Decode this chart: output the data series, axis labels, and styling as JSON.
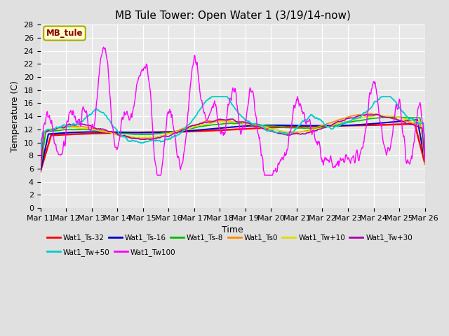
{
  "title": "MB Tule Tower: Open Water 1 (3/19/14-now)",
  "xlabel": "Time",
  "ylabel": "Temperature (C)",
  "ylim": [
    0,
    28
  ],
  "yticks": [
    0,
    2,
    4,
    6,
    8,
    10,
    12,
    14,
    16,
    18,
    20,
    22,
    24,
    26,
    28
  ],
  "background_color": "#e0e0e0",
  "plot_bg_color": "#e8e8e8",
  "legend_box_label": "MB_tule",
  "legend_box_color": "#ffffcc",
  "legend_box_edge": "#aaaa00",
  "series": [
    {
      "label": "Wat1_Ts-32",
      "color": "#ff0000"
    },
    {
      "label": "Wat1_Ts-16",
      "color": "#0000cc"
    },
    {
      "label": "Wat1_Ts-8",
      "color": "#00bb00"
    },
    {
      "label": "Wat1_Ts0",
      "color": "#ff8800"
    },
    {
      "label": "Wat1_Tw+10",
      "color": "#dddd00"
    },
    {
      "label": "Wat1_Tw+30",
      "color": "#aa00aa"
    },
    {
      "label": "Wat1_Tw+50",
      "color": "#00cccc"
    },
    {
      "label": "Wat1_Tw100",
      "color": "#ff00ff"
    }
  ],
  "xticklabels": [
    "Mar 11",
    "Mar 12",
    "Mar 13",
    "Mar 14",
    "Mar 15",
    "Mar 16",
    "Mar 17",
    "Mar 18",
    "Mar 19",
    "Mar 20",
    "Mar 21",
    "Mar 22",
    "Mar 23",
    "Mar 24",
    "Mar 25",
    "Mar 26"
  ],
  "title_fontsize": 11,
  "axis_fontsize": 9,
  "tick_fontsize": 8
}
